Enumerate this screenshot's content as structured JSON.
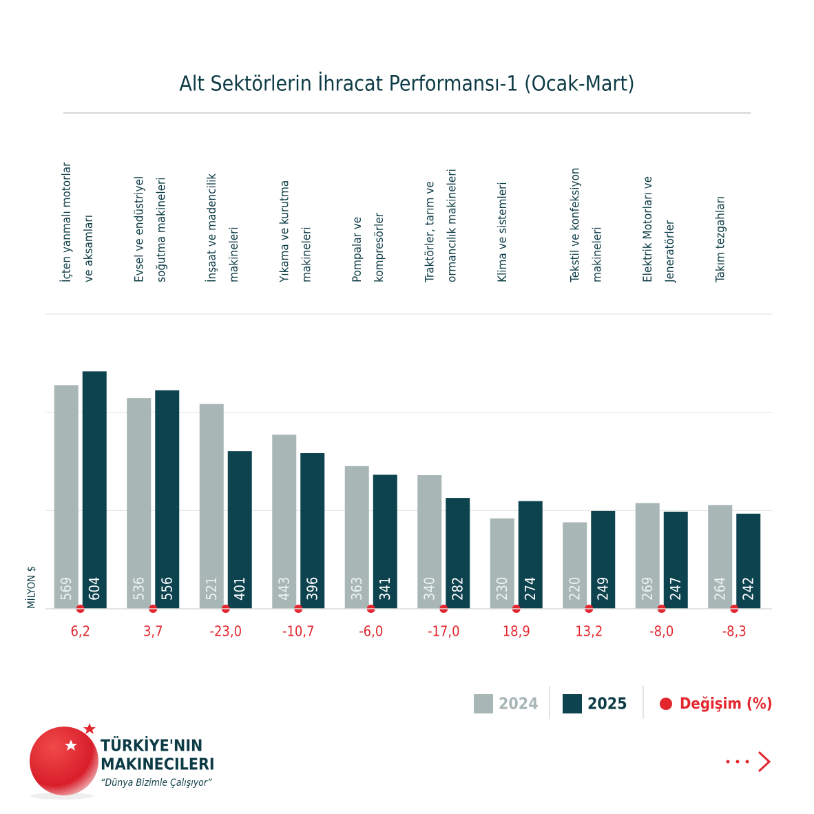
{
  "chart_data": {
    "type": "bar",
    "title": "Alt Sektörlerin İhracat Performansı-1 (Ocak-Mart)",
    "y_label": "MİLYON $",
    "categories": [
      [
        "İçten yanmalı motorlar",
        "ve aksamları"
      ],
      [
        "Evsel ve endüstriyel",
        "soğutma makineleri"
      ],
      [
        "İnşaat ve madencilik",
        "makineleri"
      ],
      [
        "Yıkama ve kurutma",
        "makineleri"
      ],
      [
        "Pompalar ve",
        "kompresörler"
      ],
      [
        "Traktörler, tarım ve",
        "ormancılık makineleri"
      ],
      [
        "Klima ve sistemleri"
      ],
      [
        "Tekstil ve konfeksiyon",
        "makineleri"
      ],
      [
        "Elektrik Motorları ve",
        "Jeneratörler"
      ],
      [
        "Takım tezgahları"
      ]
    ],
    "series": [
      {
        "name": "2024",
        "color": "#a8b6b6",
        "values": [
          569,
          536,
          521,
          443,
          363,
          340,
          230,
          220,
          269,
          264
        ]
      },
      {
        "name": "2025",
        "color": "#0d434e",
        "values": [
          604,
          556,
          401,
          396,
          341,
          282,
          274,
          249,
          247,
          242
        ]
      }
    ],
    "change": {
      "name": "Değişim (%)",
      "color": "#e3262e",
      "values": [
        6.2,
        3.7,
        -23.0,
        -10.7,
        -6.0,
        -17.0,
        18.9,
        13.2,
        -8.0,
        -8.3
      ],
      "value_labels": [
        "6,2",
        "3,7",
        "-23,0",
        "-10,7",
        "-6,0",
        "-17,0",
        "18,9",
        "13,2",
        "-8,0",
        "-8,3"
      ]
    },
    "ylim": [
      0,
      750
    ],
    "yticks": [
      0,
      250,
      500,
      750
    ],
    "grid": true
  },
  "logo": {
    "line1": "TÜRKİYE'NIN",
    "line2": "MAKINECILERI",
    "tagline": "“Dünya Bizimle Çalışıyor”"
  }
}
